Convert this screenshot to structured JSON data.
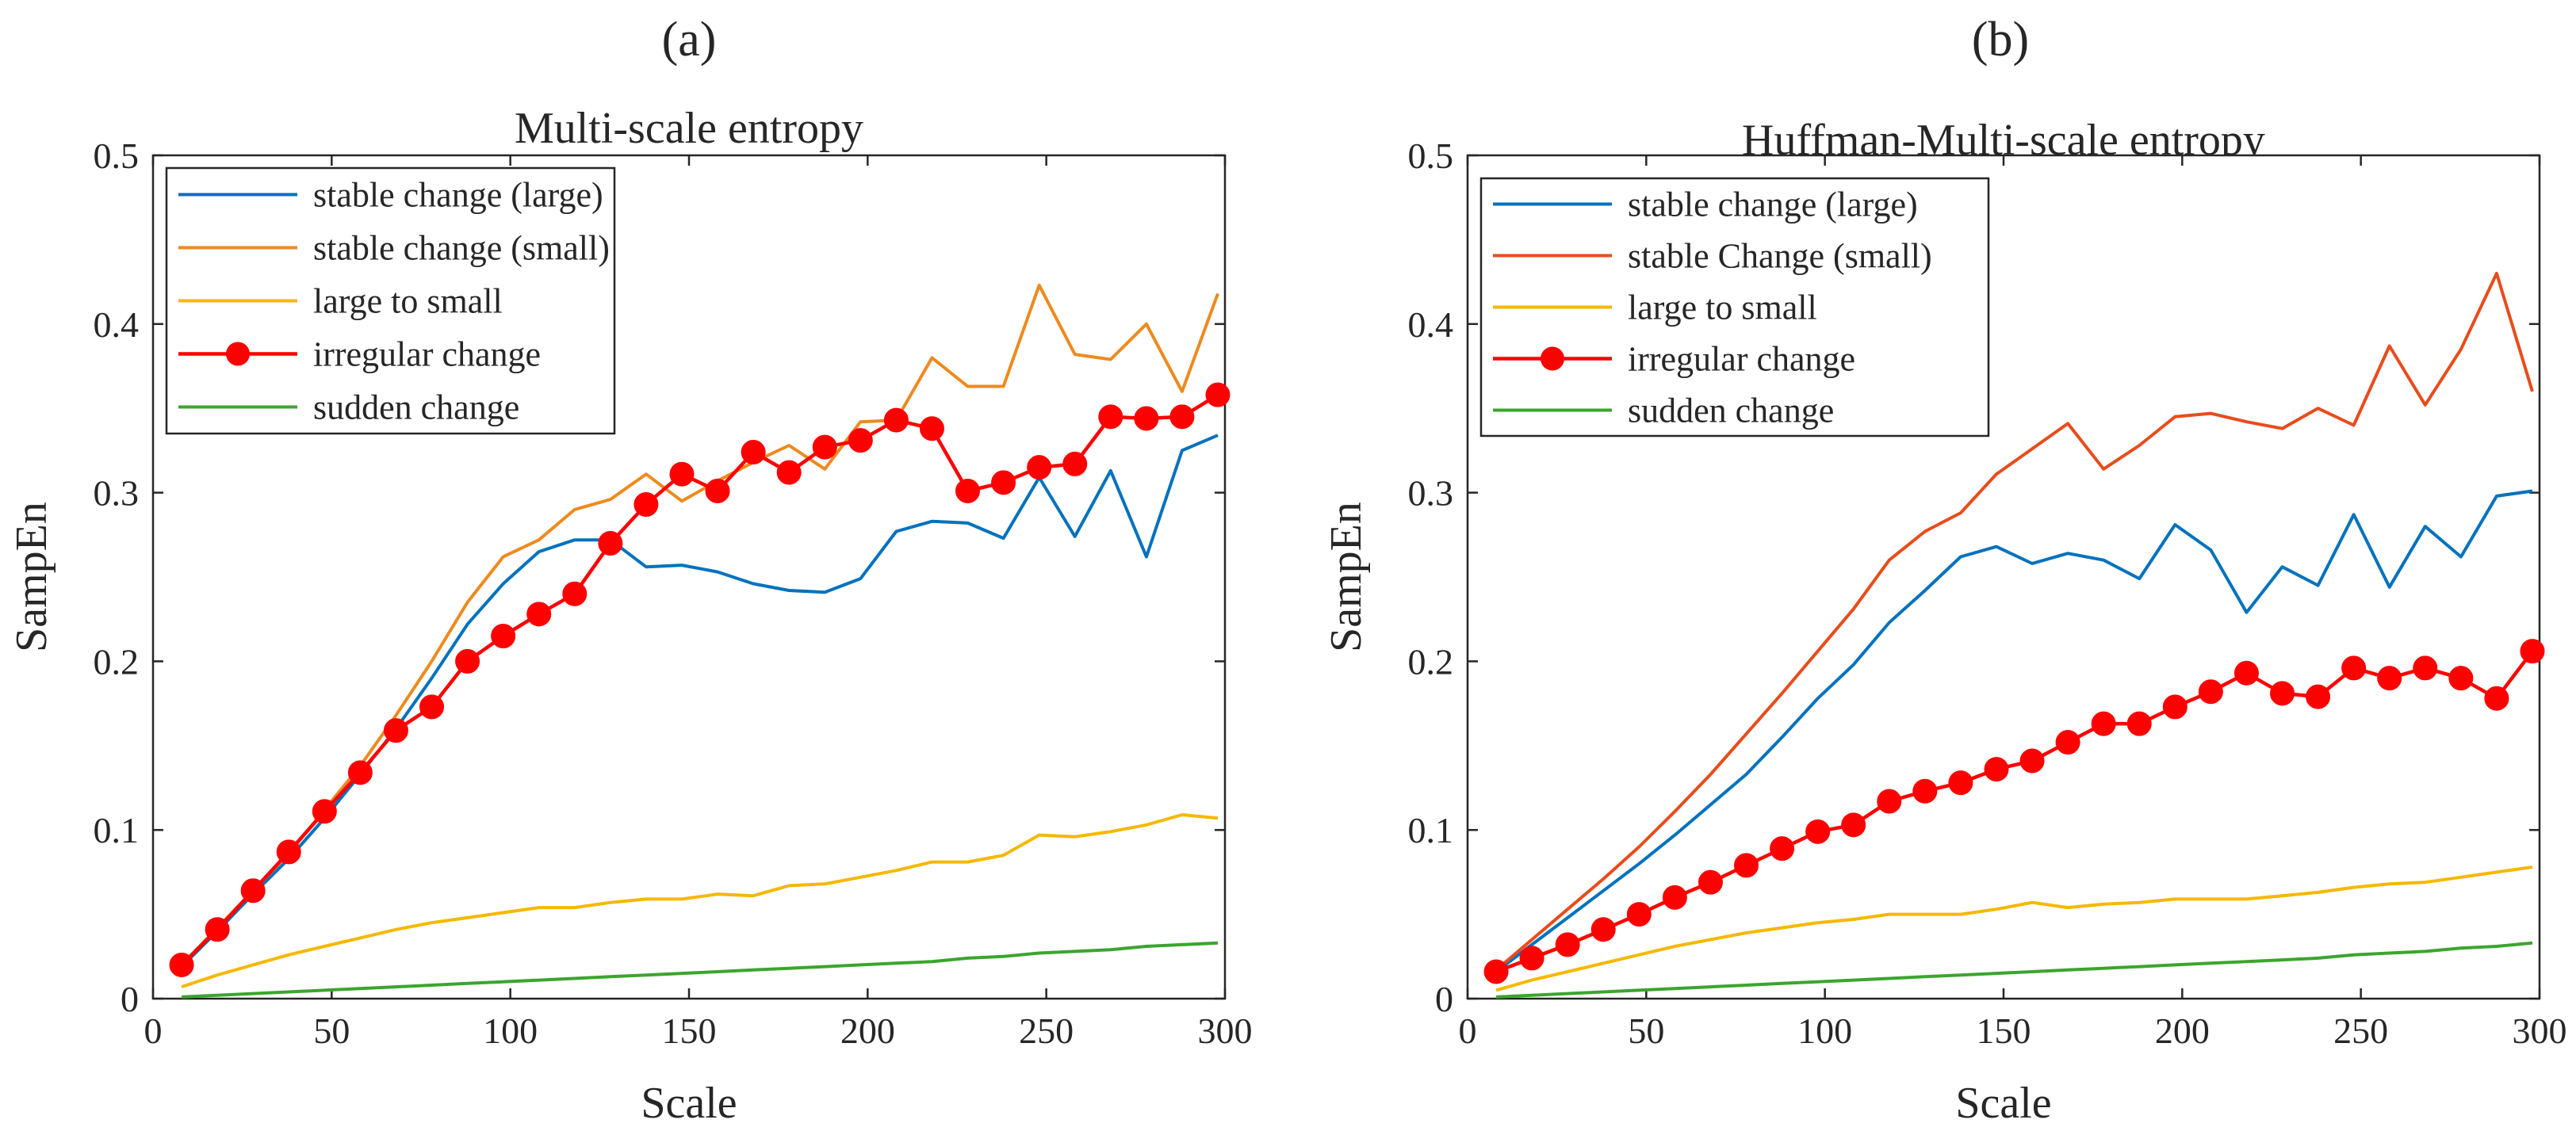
{
  "chart_data": [
    {
      "panel_label": "(a)",
      "type": "line",
      "title": "Multi-scale entropy",
      "xlabel": "Scale",
      "ylabel": "SampEn",
      "xlim": [
        0,
        300
      ],
      "ylim": [
        0,
        0.5
      ],
      "xticks": [
        0,
        50,
        100,
        150,
        200,
        250,
        300
      ],
      "yticks": [
        0,
        0.1,
        0.2,
        0.3,
        0.4,
        0.5
      ],
      "xtick_labels": [
        "0",
        "50",
        "100",
        "150",
        "200",
        "250",
        "300"
      ],
      "ytick_labels": [
        "0",
        "0.1",
        "0.2",
        "0.3",
        "0.4",
        "0.5"
      ],
      "legend_position": "top-left",
      "x": [
        8,
        18,
        28,
        38,
        48,
        58,
        68,
        78,
        88,
        98,
        108,
        118,
        128,
        138,
        148,
        158,
        168,
        178,
        188,
        198,
        208,
        218,
        228,
        238,
        248,
        258,
        268,
        278,
        288,
        298
      ],
      "series": [
        {
          "name": "stable change (large)",
          "color": "#0072bd",
          "marker": "none",
          "values": [
            0.019,
            0.04,
            0.062,
            0.083,
            0.107,
            0.133,
            0.16,
            0.19,
            0.222,
            0.246,
            0.265,
            0.272,
            0.272,
            0.256,
            0.257,
            0.253,
            0.246,
            0.242,
            0.241,
            0.249,
            0.277,
            0.283,
            0.282,
            0.273,
            0.309,
            0.274,
            0.313,
            0.262,
            0.325,
            0.334
          ]
        },
        {
          "name": "stable change (small)",
          "color": "#ed8a1e",
          "marker": "none",
          "values": [
            0.02,
            0.042,
            0.064,
            0.086,
            0.112,
            0.138,
            0.168,
            0.2,
            0.235,
            0.262,
            0.272,
            0.29,
            0.296,
            0.311,
            0.295,
            0.307,
            0.318,
            0.328,
            0.314,
            0.342,
            0.343,
            0.38,
            0.363,
            0.363,
            0.423,
            0.382,
            0.379,
            0.4,
            0.36,
            0.418
          ]
        },
        {
          "name": "large to small",
          "color": "#f5b800",
          "marker": "none",
          "values": [
            0.007,
            0.014,
            0.02,
            0.026,
            0.031,
            0.036,
            0.041,
            0.045,
            0.048,
            0.051,
            0.054,
            0.054,
            0.057,
            0.059,
            0.059,
            0.062,
            0.061,
            0.067,
            0.068,
            0.072,
            0.076,
            0.081,
            0.081,
            0.085,
            0.097,
            0.096,
            0.099,
            0.103,
            0.109,
            0.107
          ]
        },
        {
          "name": "irregular change",
          "color": "#ff0000",
          "marker": "circle",
          "values": [
            0.02,
            0.041,
            0.064,
            0.087,
            0.111,
            0.134,
            0.159,
            0.173,
            0.2,
            0.215,
            0.228,
            0.24,
            0.27,
            0.293,
            0.311,
            0.301,
            0.324,
            0.312,
            0.327,
            0.331,
            0.343,
            0.338,
            0.301,
            0.306,
            0.315,
            0.317,
            0.345,
            0.344,
            0.345,
            0.358
          ]
        },
        {
          "name": "sudden change",
          "color": "#3ba52e",
          "marker": "none",
          "values": [
            0.001,
            0.002,
            0.003,
            0.004,
            0.005,
            0.006,
            0.007,
            0.008,
            0.009,
            0.01,
            0.011,
            0.012,
            0.013,
            0.014,
            0.015,
            0.016,
            0.017,
            0.018,
            0.019,
            0.02,
            0.021,
            0.022,
            0.024,
            0.025,
            0.027,
            0.028,
            0.029,
            0.031,
            0.032,
            0.033
          ]
        }
      ]
    },
    {
      "panel_label": "(b)",
      "type": "line",
      "title": "Huffman-Multi-scale entropy",
      "xlabel": "Scale",
      "ylabel": "SampEn",
      "xlim": [
        0,
        300
      ],
      "ylim": [
        0,
        0.5
      ],
      "xticks": [
        0,
        50,
        100,
        150,
        200,
        250,
        300
      ],
      "yticks": [
        0,
        0.1,
        0.2,
        0.3,
        0.4,
        0.5
      ],
      "xtick_labels": [
        "0",
        "50",
        "100",
        "150",
        "200",
        "250",
        "300"
      ],
      "ytick_labels": [
        "0",
        "0.1",
        "0.2",
        "0.3",
        "0.4",
        "0.5"
      ],
      "legend_position": "top-left",
      "x": [
        8,
        18,
        28,
        38,
        48,
        58,
        68,
        78,
        88,
        98,
        108,
        118,
        128,
        138,
        148,
        158,
        168,
        178,
        188,
        198,
        208,
        218,
        228,
        238,
        248,
        258,
        268,
        278,
        288,
        298
      ],
      "series": [
        {
          "name": "stable change (large)",
          "color": "#0072bd",
          "marker": "none",
          "values": [
            0.016,
            0.032,
            0.048,
            0.064,
            0.08,
            0.097,
            0.115,
            0.133,
            0.155,
            0.178,
            0.198,
            0.223,
            0.242,
            0.262,
            0.268,
            0.258,
            0.264,
            0.26,
            0.249,
            0.281,
            0.266,
            0.229,
            0.256,
            0.245,
            0.287,
            0.244,
            0.28,
            0.262,
            0.298,
            0.301
          ]
        },
        {
          "name": "stable Change (small)",
          "color": "#e84c1c",
          "marker": "none",
          "values": [
            0.017,
            0.035,
            0.053,
            0.071,
            0.09,
            0.111,
            0.133,
            0.157,
            0.181,
            0.206,
            0.231,
            0.26,
            0.277,
            0.288,
            0.311,
            0.326,
            0.341,
            0.314,
            0.328,
            0.345,
            0.347,
            0.342,
            0.338,
            0.35,
            0.34,
            0.387,
            0.352,
            0.385,
            0.43,
            0.36
          ]
        },
        {
          "name": "large to small",
          "color": "#f5b800",
          "marker": "none",
          "values": [
            0.005,
            0.011,
            0.016,
            0.021,
            0.026,
            0.031,
            0.035,
            0.039,
            0.042,
            0.045,
            0.047,
            0.05,
            0.05,
            0.05,
            0.053,
            0.057,
            0.054,
            0.056,
            0.057,
            0.059,
            0.059,
            0.059,
            0.061,
            0.063,
            0.066,
            0.068,
            0.069,
            0.072,
            0.075,
            0.078
          ]
        },
        {
          "name": "irregular change",
          "color": "#ff0000",
          "marker": "circle",
          "values": [
            0.016,
            0.024,
            0.032,
            0.041,
            0.05,
            0.06,
            0.069,
            0.079,
            0.089,
            0.099,
            0.103,
            0.117,
            0.123,
            0.128,
            0.136,
            0.141,
            0.152,
            0.163,
            0.163,
            0.173,
            0.182,
            0.193,
            0.181,
            0.179,
            0.196,
            0.19,
            0.196,
            0.19,
            0.178,
            0.206
          ]
        },
        {
          "name": "sudden change",
          "color": "#3ba52e",
          "marker": "none",
          "values": [
            0.001,
            0.002,
            0.003,
            0.004,
            0.005,
            0.006,
            0.007,
            0.008,
            0.009,
            0.01,
            0.011,
            0.012,
            0.013,
            0.014,
            0.015,
            0.016,
            0.017,
            0.018,
            0.019,
            0.02,
            0.021,
            0.022,
            0.023,
            0.024,
            0.026,
            0.027,
            0.028,
            0.03,
            0.031,
            0.033
          ]
        }
      ]
    }
  ]
}
